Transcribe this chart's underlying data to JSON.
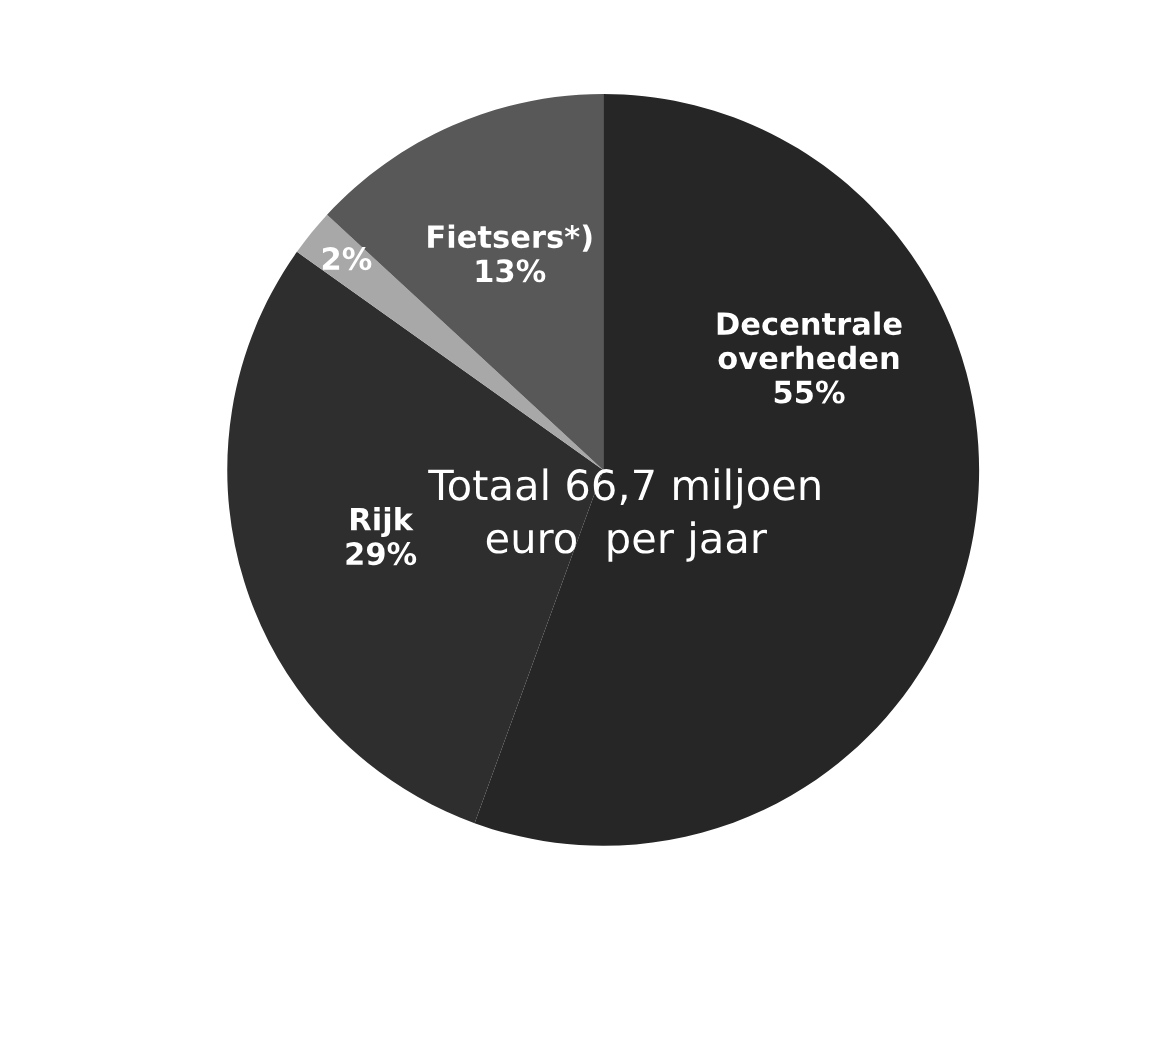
{
  "chart_data": {
    "type": "pie",
    "categories": [
      "Decentrale\noverheden",
      "Rijk",
      null,
      "Fietsers*)"
    ],
    "values": [
      55,
      29,
      2,
      13
    ],
    "value_labels": [
      "55%",
      "29%",
      "2%",
      "13%"
    ],
    "colors": [
      "#262626",
      "#2e2e2e",
      "#a8a8a8",
      "#585858"
    ],
    "annotations": [
      "Totaal 66,7 miljoen\neuro  per jaar"
    ]
  }
}
